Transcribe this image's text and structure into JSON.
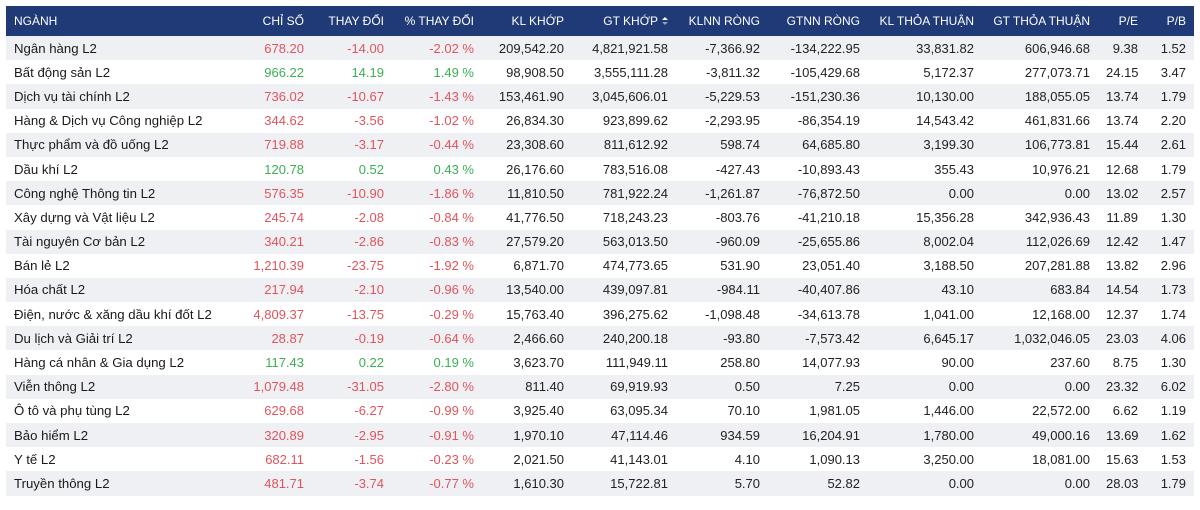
{
  "table": {
    "headers": [
      {
        "key": "sector",
        "label": "NGÀNH"
      },
      {
        "key": "index",
        "label": "CHỈ SỐ"
      },
      {
        "key": "change",
        "label": "THAY ĐỔI"
      },
      {
        "key": "pct_change",
        "label": "% THAY ĐỔI"
      },
      {
        "key": "matched_volume",
        "label": "KL KHỚP"
      },
      {
        "key": "matched_value",
        "label": "GT KHỚP"
      },
      {
        "key": "foreign_net_volume",
        "label": "KLNN RÒNG"
      },
      {
        "key": "foreign_net_value",
        "label": "GTNN RÒNG"
      },
      {
        "key": "deal_volume",
        "label": "KL THỎA THUẬN"
      },
      {
        "key": "deal_value",
        "label": "GT THỎA THUẬN"
      },
      {
        "key": "pe",
        "label": "P/E"
      },
      {
        "key": "pb",
        "label": "P/B"
      }
    ],
    "sorted_column": "matched_value",
    "sort_icon": "sort-desc-icon",
    "colors": {
      "header_bg": "#1f3a76",
      "up": "#3cae55",
      "down": "#e0545c",
      "row_stripe": "#eef0f4"
    },
    "rows": [
      {
        "sector": "Ngân hàng L2",
        "index": "678.20",
        "change": "-14.00",
        "pct_change": "-2.02 %",
        "matched_volume": "209,542.20",
        "matched_value": "4,821,921.58",
        "foreign_net_volume": "-7,366.92",
        "foreign_net_value": "-134,222.95",
        "deal_volume": "33,831.82",
        "deal_value": "606,946.68",
        "pe": "9.38",
        "pb": "1.52",
        "trend": "down"
      },
      {
        "sector": "Bất động sản L2",
        "index": "966.22",
        "change": "14.19",
        "pct_change": "1.49 %",
        "matched_volume": "98,908.50",
        "matched_value": "3,555,111.28",
        "foreign_net_volume": "-3,811.32",
        "foreign_net_value": "-105,429.68",
        "deal_volume": "5,172.37",
        "deal_value": "277,073.71",
        "pe": "24.15",
        "pb": "3.47",
        "trend": "up"
      },
      {
        "sector": "Dịch vụ tài chính L2",
        "index": "736.02",
        "change": "-10.67",
        "pct_change": "-1.43 %",
        "matched_volume": "153,461.90",
        "matched_value": "3,045,606.01",
        "foreign_net_volume": "-5,229.53",
        "foreign_net_value": "-151,230.36",
        "deal_volume": "10,130.00",
        "deal_value": "188,055.05",
        "pe": "13.74",
        "pb": "1.79",
        "trend": "down"
      },
      {
        "sector": "Hàng & Dịch vụ Công nghiệp L2",
        "index": "344.62",
        "change": "-3.56",
        "pct_change": "-1.02 %",
        "matched_volume": "26,834.30",
        "matched_value": "923,899.62",
        "foreign_net_volume": "-2,293.95",
        "foreign_net_value": "-86,354.19",
        "deal_volume": "14,543.42",
        "deal_value": "461,831.66",
        "pe": "13.74",
        "pb": "2.20",
        "trend": "down"
      },
      {
        "sector": "Thực phẩm và đồ uống L2",
        "index": "719.88",
        "change": "-3.17",
        "pct_change": "-0.44 %",
        "matched_volume": "23,308.60",
        "matched_value": "811,612.92",
        "foreign_net_volume": "598.74",
        "foreign_net_value": "64,685.80",
        "deal_volume": "3,199.30",
        "deal_value": "106,773.81",
        "pe": "15.44",
        "pb": "2.61",
        "trend": "down"
      },
      {
        "sector": "Dầu khí L2",
        "index": "120.78",
        "change": "0.52",
        "pct_change": "0.43 %",
        "matched_volume": "26,176.60",
        "matched_value": "783,516.08",
        "foreign_net_volume": "-427.43",
        "foreign_net_value": "-10,893.43",
        "deal_volume": "355.43",
        "deal_value": "10,976.21",
        "pe": "12.68",
        "pb": "1.79",
        "trend": "up"
      },
      {
        "sector": "Công nghệ Thông tin L2",
        "index": "576.35",
        "change": "-10.90",
        "pct_change": "-1.86 %",
        "matched_volume": "11,810.50",
        "matched_value": "781,922.24",
        "foreign_net_volume": "-1,261.87",
        "foreign_net_value": "-76,872.50",
        "deal_volume": "0.00",
        "deal_value": "0.00",
        "pe": "13.02",
        "pb": "2.57",
        "trend": "down"
      },
      {
        "sector": "Xây dựng và Vật liệu L2",
        "index": "245.74",
        "change": "-2.08",
        "pct_change": "-0.84 %",
        "matched_volume": "41,776.50",
        "matched_value": "718,243.23",
        "foreign_net_volume": "-803.76",
        "foreign_net_value": "-41,210.18",
        "deal_volume": "15,356.28",
        "deal_value": "342,936.43",
        "pe": "11.89",
        "pb": "1.30",
        "trend": "down"
      },
      {
        "sector": "Tài nguyên Cơ bản L2",
        "index": "340.21",
        "change": "-2.86",
        "pct_change": "-0.83 %",
        "matched_volume": "27,579.20",
        "matched_value": "563,013.50",
        "foreign_net_volume": "-960.09",
        "foreign_net_value": "-25,655.86",
        "deal_volume": "8,002.04",
        "deal_value": "112,026.69",
        "pe": "12.42",
        "pb": "1.47",
        "trend": "down"
      },
      {
        "sector": "Bán lẻ L2",
        "index": "1,210.39",
        "change": "-23.75",
        "pct_change": "-1.92 %",
        "matched_volume": "6,871.70",
        "matched_value": "474,773.65",
        "foreign_net_volume": "531.90",
        "foreign_net_value": "23,051.40",
        "deal_volume": "3,188.50",
        "deal_value": "207,281.88",
        "pe": "13.82",
        "pb": "2.96",
        "trend": "down"
      },
      {
        "sector": "Hóa chất L2",
        "index": "217.94",
        "change": "-2.10",
        "pct_change": "-0.96 %",
        "matched_volume": "13,540.00",
        "matched_value": "439,097.81",
        "foreign_net_volume": "-984.11",
        "foreign_net_value": "-40,407.86",
        "deal_volume": "43.10",
        "deal_value": "683.84",
        "pe": "14.54",
        "pb": "1.73",
        "trend": "down"
      },
      {
        "sector": "Điện, nước & xăng dầu khí đốt L2",
        "index": "4,809.37",
        "change": "-13.75",
        "pct_change": "-0.29 %",
        "matched_volume": "15,763.40",
        "matched_value": "396,275.62",
        "foreign_net_volume": "-1,098.48",
        "foreign_net_value": "-34,613.78",
        "deal_volume": "1,041.00",
        "deal_value": "12,168.00",
        "pe": "12.37",
        "pb": "1.74",
        "trend": "down"
      },
      {
        "sector": "Du lịch và Giải trí L2",
        "index": "28.87",
        "change": "-0.19",
        "pct_change": "-0.64 %",
        "matched_volume": "2,466.60",
        "matched_value": "240,200.18",
        "foreign_net_volume": "-93.80",
        "foreign_net_value": "-7,573.42",
        "deal_volume": "6,645.17",
        "deal_value": "1,032,046.05",
        "pe": "23.03",
        "pb": "4.06",
        "trend": "down"
      },
      {
        "sector": "Hàng cá nhân & Gia dụng L2",
        "index": "117.43",
        "change": "0.22",
        "pct_change": "0.19 %",
        "matched_volume": "3,623.70",
        "matched_value": "111,949.11",
        "foreign_net_volume": "258.80",
        "foreign_net_value": "14,077.93",
        "deal_volume": "90.00",
        "deal_value": "237.60",
        "pe": "8.75",
        "pb": "1.30",
        "trend": "up"
      },
      {
        "sector": "Viễn thông L2",
        "index": "1,079.48",
        "change": "-31.05",
        "pct_change": "-2.80 %",
        "matched_volume": "811.40",
        "matched_value": "69,919.93",
        "foreign_net_volume": "0.50",
        "foreign_net_value": "7.25",
        "deal_volume": "0.00",
        "deal_value": "0.00",
        "pe": "23.32",
        "pb": "6.02",
        "trend": "down"
      },
      {
        "sector": "Ô tô và phụ tùng L2",
        "index": "629.68",
        "change": "-6.27",
        "pct_change": "-0.99 %",
        "matched_volume": "3,925.40",
        "matched_value": "63,095.34",
        "foreign_net_volume": "70.10",
        "foreign_net_value": "1,981.05",
        "deal_volume": "1,446.00",
        "deal_value": "22,572.00",
        "pe": "6.62",
        "pb": "1.19",
        "trend": "down"
      },
      {
        "sector": "Bảo hiểm L2",
        "index": "320.89",
        "change": "-2.95",
        "pct_change": "-0.91 %",
        "matched_volume": "1,970.10",
        "matched_value": "47,114.46",
        "foreign_net_volume": "934.59",
        "foreign_net_value": "16,204.91",
        "deal_volume": "1,780.00",
        "deal_value": "49,000.16",
        "pe": "13.69",
        "pb": "1.62",
        "trend": "down"
      },
      {
        "sector": "Y tế L2",
        "index": "682.11",
        "change": "-1.56",
        "pct_change": "-0.23 %",
        "matched_volume": "2,021.50",
        "matched_value": "41,143.01",
        "foreign_net_volume": "4.10",
        "foreign_net_value": "1,090.13",
        "deal_volume": "3,250.00",
        "deal_value": "18,081.00",
        "pe": "15.63",
        "pb": "1.53",
        "trend": "down"
      },
      {
        "sector": "Truyền thông L2",
        "index": "481.71",
        "change": "-3.74",
        "pct_change": "-0.77 %",
        "matched_volume": "1,610.30",
        "matched_value": "15,722.81",
        "foreign_net_volume": "5.70",
        "foreign_net_value": "52.82",
        "deal_volume": "0.00",
        "deal_value": "0.00",
        "pe": "28.03",
        "pb": "1.79",
        "trend": "down"
      }
    ]
  }
}
